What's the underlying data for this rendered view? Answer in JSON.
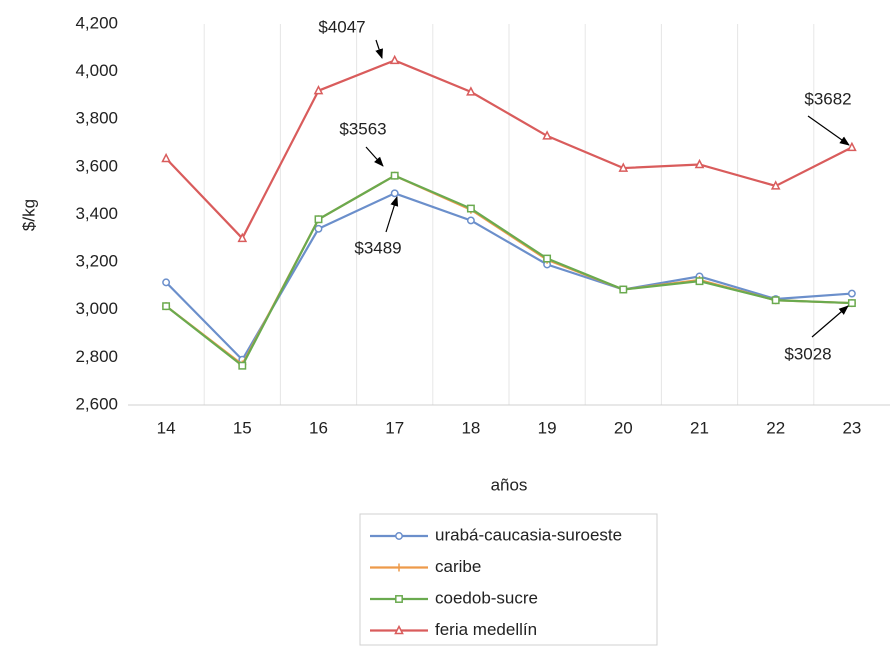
{
  "chart_data": {
    "type": "line",
    "y_label": "$/kg",
    "x_label": "años",
    "categories": [
      "14",
      "15",
      "16",
      "17",
      "18",
      "19",
      "20",
      "21",
      "22",
      "23"
    ],
    "series": [
      {
        "name": "urabá-caucasia-suroeste",
        "color": "#6b8fcb",
        "marker": "circle",
        "values": [
          3115,
          2790,
          3340,
          3489,
          3375,
          3190,
          3085,
          3140,
          3045,
          3068
        ]
      },
      {
        "name": "caribe",
        "color": "#ee9a4a",
        "marker": "plus",
        "values": [
          3015,
          2770,
          3380,
          3563,
          3420,
          3210,
          3085,
          3125,
          3040,
          3028
        ]
      },
      {
        "name": "coedob-sucre",
        "color": "#6aaa4f",
        "marker": "square",
        "values": [
          3015,
          2765,
          3380,
          3563,
          3425,
          3215,
          3085,
          3120,
          3040,
          3028
        ]
      },
      {
        "name": "feria medellín",
        "color": "#d95c5c",
        "marker": "triangle",
        "values": [
          3635,
          3300,
          3920,
          4047,
          3915,
          3730,
          3595,
          3610,
          3520,
          3682
        ]
      }
    ],
    "annotations": [
      {
        "text": "$4047"
      },
      {
        "text": "$3563"
      },
      {
        "text": "$3489"
      },
      {
        "text": "$3682"
      },
      {
        "text": "$3028"
      }
    ],
    "ylim": [
      2600,
      4200
    ],
    "yticks": [
      {
        "value": 2600,
        "label": "2,600"
      },
      {
        "value": 2800,
        "label": "2,800"
      },
      {
        "value": 3000,
        "label": "3,000"
      },
      {
        "value": 3200,
        "label": "3,200"
      },
      {
        "value": 3400,
        "label": "3,400"
      },
      {
        "value": 3600,
        "label": "3,600"
      },
      {
        "value": 3800,
        "label": "3,800"
      },
      {
        "value": 4000,
        "label": "4,000"
      },
      {
        "value": 4200,
        "label": "4,200"
      }
    ],
    "grid": true,
    "legend": "bottom"
  }
}
